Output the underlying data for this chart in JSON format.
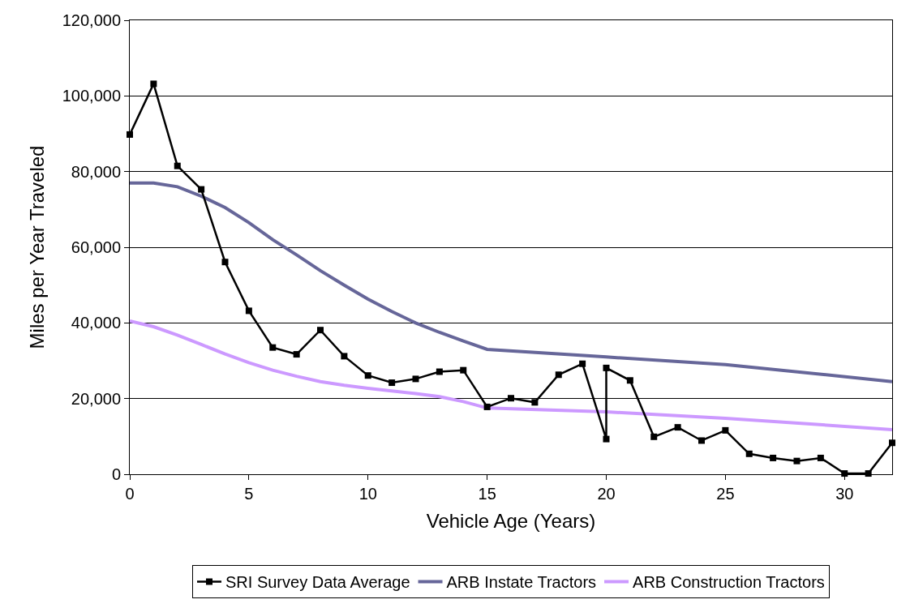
{
  "chart_data": {
    "type": "line",
    "xlabel": "Vehicle Age (Years)",
    "ylabel": "Miles per Year Traveled",
    "xlim": [
      0,
      32
    ],
    "xticks": [
      0,
      5,
      10,
      15,
      20,
      25,
      30
    ],
    "ylim": [
      0,
      120000
    ],
    "yticks": [
      {
        "value": 0,
        "label": "0"
      },
      {
        "value": 20000,
        "label": "20,000"
      },
      {
        "value": 40000,
        "label": "40,000"
      },
      {
        "value": 60000,
        "label": "60,000"
      },
      {
        "value": 80000,
        "label": "80,000"
      },
      {
        "value": 100000,
        "label": "100,000"
      },
      {
        "value": 120000,
        "label": "120,000"
      }
    ],
    "grid": "y",
    "legend": "bottom",
    "line_style": "solid",
    "series": [
      {
        "name": "SRI Survey Data Average",
        "color": "#000000",
        "marker": "square",
        "x": [
          0,
          1,
          2,
          3,
          4,
          5,
          6,
          7,
          8,
          9,
          10,
          11,
          12,
          13,
          14,
          15,
          16,
          17,
          18,
          19,
          20,
          20,
          21,
          22,
          23,
          24,
          25,
          26,
          27,
          28,
          29,
          30,
          31,
          32
        ],
        "values": [
          89800,
          103200,
          81500,
          75300,
          56100,
          43200,
          33500,
          31700,
          38100,
          31200,
          26100,
          24200,
          25200,
          27100,
          27500,
          17800,
          20100,
          19000,
          26300,
          29200,
          9300,
          28100,
          24800,
          9900,
          12400,
          8900,
          11600,
          5400,
          4300,
          3500,
          4300,
          200,
          200,
          8300
        ]
      },
      {
        "name": "ARB Instate Tractors",
        "color": "#666699",
        "marker": "none",
        "x": [
          0,
          1,
          2,
          3,
          4,
          5,
          6,
          7,
          8,
          9,
          10,
          11,
          12,
          13,
          14,
          15,
          20,
          25,
          32
        ],
        "values": [
          77000,
          77000,
          76000,
          73500,
          70500,
          66500,
          62000,
          58000,
          53800,
          50000,
          46300,
          43000,
          40000,
          37500,
          35200,
          33000,
          31000,
          29000,
          24500
        ]
      },
      {
        "name": "ARB Construction Tractors",
        "color": "#cc99ff",
        "marker": "none",
        "x": [
          0,
          1,
          2,
          3,
          4,
          5,
          6,
          7,
          8,
          9,
          10,
          11,
          12,
          13,
          14,
          15,
          20,
          25,
          32
        ],
        "values": [
          40500,
          39000,
          36800,
          34300,
          31800,
          29500,
          27500,
          25900,
          24500,
          23500,
          22700,
          22000,
          21300,
          20500,
          19200,
          17500,
          16500,
          14800,
          11800
        ]
      }
    ]
  }
}
